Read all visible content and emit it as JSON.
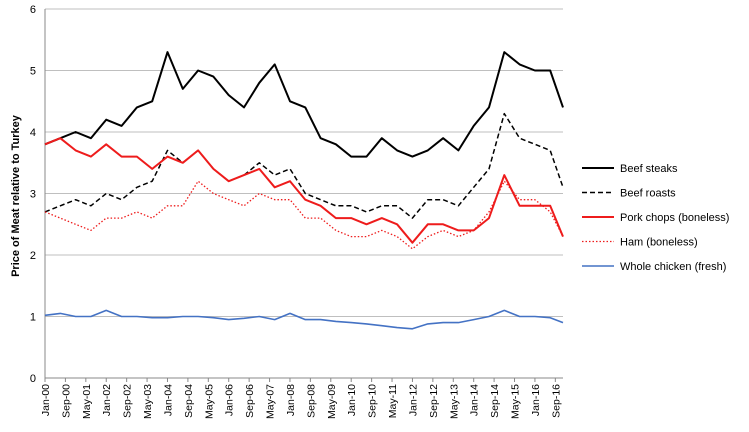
{
  "chart_data": {
    "type": "line",
    "title": "",
    "xlabel": "",
    "ylabel": "Price of Meat relative to Turkey",
    "ylim": [
      0,
      6
    ],
    "yticks": [
      0,
      1,
      2,
      3,
      4,
      5,
      6
    ],
    "grid": "horizontal",
    "legend_position": "right",
    "x_start": "Jan-00",
    "x_end": "Dec-16",
    "x_tick_labels": [
      "Jan-00",
      "Sep-00",
      "May-01",
      "Jan-02",
      "Sep-02",
      "May-03",
      "Jan-04",
      "Sep-04",
      "May-05",
      "Jan-06",
      "Sep-06",
      "May-07",
      "Jan-08",
      "Sep-08",
      "May-09",
      "Jan-10",
      "Sep-10",
      "May-11",
      "Jan-12",
      "Sep-12",
      "May-13",
      "Jan-14",
      "Sep-14",
      "May-15",
      "Jan-16",
      "Sep-16"
    ],
    "series": [
      {
        "name": "Beef steaks",
        "color": "#000000",
        "dash": "solid",
        "width": 2,
        "x": [
          "Jan-00",
          "Jul-00",
          "Jan-01",
          "Jul-01",
          "Jan-02",
          "Jul-02",
          "Jan-03",
          "Jul-03",
          "Jan-04",
          "Jul-04",
          "Jan-05",
          "Jul-05",
          "Jan-06",
          "Jul-06",
          "Jan-07",
          "Jul-07",
          "Jan-08",
          "Jul-08",
          "Jan-09",
          "Jul-09",
          "Jan-10",
          "Jul-10",
          "Jan-11",
          "Jul-11",
          "Jan-12",
          "Jul-12",
          "Jan-13",
          "Jul-13",
          "Jan-14",
          "Jul-14",
          "Jan-15",
          "Jul-15",
          "Jan-16",
          "Jul-16",
          "Dec-16"
        ],
        "values": [
          3.8,
          3.9,
          4.0,
          3.9,
          4.2,
          4.1,
          4.4,
          4.5,
          5.3,
          4.7,
          5.0,
          4.9,
          4.6,
          4.4,
          4.8,
          5.1,
          4.5,
          4.4,
          3.9,
          3.8,
          3.6,
          3.6,
          3.9,
          3.7,
          3.6,
          3.7,
          3.9,
          3.7,
          4.1,
          4.4,
          5.3,
          5.1,
          5.0,
          5.0,
          4.4
        ]
      },
      {
        "name": "Beef roasts",
        "color": "#000000",
        "dash": "dashed",
        "width": 1.5,
        "x": [
          "Jan-00",
          "Jul-00",
          "Jan-01",
          "Jul-01",
          "Jan-02",
          "Jul-02",
          "Jan-03",
          "Jul-03",
          "Jan-04",
          "Jul-04",
          "Jan-05",
          "Jul-05",
          "Jan-06",
          "Jul-06",
          "Jan-07",
          "Jul-07",
          "Jan-08",
          "Jul-08",
          "Jan-09",
          "Jul-09",
          "Jan-10",
          "Jul-10",
          "Jan-11",
          "Jul-11",
          "Jan-12",
          "Jul-12",
          "Jan-13",
          "Jul-13",
          "Jan-14",
          "Jul-14",
          "Jan-15",
          "Jul-15",
          "Jan-16",
          "Jul-16",
          "Dec-16"
        ],
        "values": [
          2.7,
          2.8,
          2.9,
          2.8,
          3.0,
          2.9,
          3.1,
          3.2,
          3.7,
          3.5,
          3.7,
          3.4,
          3.2,
          3.3,
          3.5,
          3.3,
          3.4,
          3.0,
          2.9,
          2.8,
          2.8,
          2.7,
          2.8,
          2.8,
          2.6,
          2.9,
          2.9,
          2.8,
          3.1,
          3.4,
          4.3,
          3.9,
          3.8,
          3.7,
          3.1
        ]
      },
      {
        "name": "Pork chops (boneless)",
        "color": "#ee1c1c",
        "dash": "solid",
        "width": 2,
        "x": [
          "Jan-00",
          "Jul-00",
          "Jan-01",
          "Jul-01",
          "Jan-02",
          "Jul-02",
          "Jan-03",
          "Jul-03",
          "Jan-04",
          "Jul-04",
          "Jan-05",
          "Jul-05",
          "Jan-06",
          "Jul-06",
          "Jan-07",
          "Jul-07",
          "Jan-08",
          "Jul-08",
          "Jan-09",
          "Jul-09",
          "Jan-10",
          "Jul-10",
          "Jan-11",
          "Jul-11",
          "Jan-12",
          "Jul-12",
          "Jan-13",
          "Jul-13",
          "Jan-14",
          "Jul-14",
          "Jan-15",
          "Jul-15",
          "Jan-16",
          "Jul-16",
          "Dec-16"
        ],
        "values": [
          3.8,
          3.9,
          3.7,
          3.6,
          3.8,
          3.6,
          3.6,
          3.4,
          3.6,
          3.5,
          3.7,
          3.4,
          3.2,
          3.3,
          3.4,
          3.1,
          3.2,
          2.9,
          2.8,
          2.6,
          2.6,
          2.5,
          2.6,
          2.5,
          2.2,
          2.5,
          2.5,
          2.4,
          2.4,
          2.6,
          3.3,
          2.8,
          2.8,
          2.8,
          2.3
        ]
      },
      {
        "name": "Ham (boneless)",
        "color": "#ee1c1c",
        "dash": "dotted",
        "width": 1.3,
        "x": [
          "Jan-00",
          "Jul-00",
          "Jan-01",
          "Jul-01",
          "Jan-02",
          "Jul-02",
          "Jan-03",
          "Jul-03",
          "Jan-04",
          "Jul-04",
          "Jan-05",
          "Jul-05",
          "Jan-06",
          "Jul-06",
          "Jan-07",
          "Jul-07",
          "Jan-08",
          "Jul-08",
          "Jan-09",
          "Jul-09",
          "Jan-10",
          "Jul-10",
          "Jan-11",
          "Jul-11",
          "Jan-12",
          "Jul-12",
          "Jan-13",
          "Jul-13",
          "Jan-14",
          "Jul-14",
          "Jan-15",
          "Jul-15",
          "Jan-16",
          "Jul-16",
          "Dec-16"
        ],
        "values": [
          2.7,
          2.6,
          2.5,
          2.4,
          2.6,
          2.6,
          2.7,
          2.6,
          2.8,
          2.8,
          3.2,
          3.0,
          2.9,
          2.8,
          3.0,
          2.9,
          2.9,
          2.6,
          2.6,
          2.4,
          2.3,
          2.3,
          2.4,
          2.3,
          2.1,
          2.3,
          2.4,
          2.3,
          2.4,
          2.7,
          3.2,
          2.9,
          2.9,
          2.7,
          2.3
        ]
      },
      {
        "name": "Whole chicken (fresh)",
        "color": "#4472c4",
        "dash": "solid",
        "width": 1.6,
        "x": [
          "Jan-00",
          "Jul-00",
          "Jan-01",
          "Jul-01",
          "Jan-02",
          "Jul-02",
          "Jan-03",
          "Jul-03",
          "Jan-04",
          "Jul-04",
          "Jan-05",
          "Jul-05",
          "Jan-06",
          "Jul-06",
          "Jan-07",
          "Jul-07",
          "Jan-08",
          "Jul-08",
          "Jan-09",
          "Jul-09",
          "Jan-10",
          "Jul-10",
          "Jan-11",
          "Jul-11",
          "Jan-12",
          "Jul-12",
          "Jan-13",
          "Jul-13",
          "Jan-14",
          "Jul-14",
          "Jan-15",
          "Jul-15",
          "Jan-16",
          "Jul-16",
          "Dec-16"
        ],
        "values": [
          1.02,
          1.05,
          1.0,
          1.0,
          1.1,
          1.0,
          1.0,
          0.98,
          0.98,
          1.0,
          1.0,
          0.98,
          0.95,
          0.97,
          1.0,
          0.95,
          1.05,
          0.95,
          0.95,
          0.92,
          0.9,
          0.88,
          0.85,
          0.82,
          0.8,
          0.88,
          0.9,
          0.9,
          0.95,
          1.0,
          1.1,
          1.0,
          1.0,
          0.98,
          0.9
        ]
      }
    ]
  }
}
